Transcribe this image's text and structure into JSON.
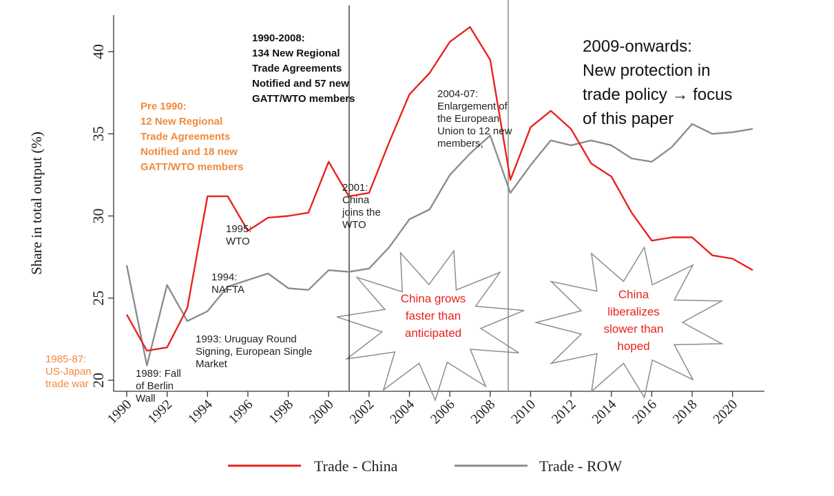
{
  "chart_data": {
    "type": "line",
    "ylabel": "Share in total output (%)",
    "xlabel": "",
    "ylim": [
      20,
      42.5
    ],
    "xlim": [
      1990,
      2021
    ],
    "yticks": [
      20,
      25,
      30,
      35,
      40
    ],
    "xticks": [
      1990,
      1992,
      1994,
      1996,
      1998,
      2000,
      2002,
      2004,
      2006,
      2008,
      2010,
      2012,
      2014,
      2016,
      2018,
      2020
    ],
    "x": [
      1990,
      1991,
      1992,
      1993,
      1994,
      1995,
      1996,
      1997,
      1998,
      1999,
      2000,
      2001,
      2002,
      2003,
      2004,
      2005,
      2006,
      2007,
      2008,
      2009,
      2010,
      2011,
      2012,
      2013,
      2014,
      2015,
      2016,
      2017,
      2018,
      2019,
      2020,
      2021
    ],
    "series": [
      {
        "name": "Trade - China",
        "color": "#e8221c",
        "values": [
          24.0,
          21.8,
          22.0,
          24.4,
          31.2,
          31.2,
          29.1,
          29.9,
          30.0,
          30.2,
          33.3,
          31.2,
          31.4,
          34.5,
          37.4,
          38.7,
          40.6,
          41.5,
          39.5,
          32.2,
          35.4,
          36.4,
          35.3,
          33.2,
          32.4,
          30.2,
          28.5,
          28.7,
          28.7,
          27.6,
          27.4,
          26.7
        ]
      },
      {
        "name": "Trade - ROW",
        "color": "#8c8c8c",
        "values": [
          27.0,
          20.9,
          25.8,
          23.6,
          24.2,
          25.7,
          26.1,
          26.5,
          25.6,
          25.5,
          26.7,
          26.6,
          26.8,
          28.1,
          29.8,
          30.4,
          32.5,
          33.8,
          34.9,
          31.4,
          33.1,
          34.6,
          34.3,
          34.6,
          34.3,
          33.5,
          33.3,
          34.2,
          35.6,
          35.0,
          35.1,
          35.3
        ]
      }
    ],
    "vlines": [
      2001,
      2008.85
    ],
    "legend_placement": "bottom-center",
    "grid": false
  },
  "annotations": {
    "pre1990": "Pre 1990:\n12 New Regional\nTrade Agreements\nNotified and 18 new\nGATT/WTO members",
    "period1990": "1990-2008:\n134 New Regional\nTrade Agreements\nNotified and 57 new\nGATT/WTO members",
    "period2009": "2009-onwards:\nNew protection in\ntrade policy → focus\nof this paper",
    "wto1995": "1995:\nWTO",
    "china2001": "2001:\nChina\njoins the\nWTO",
    "eu2004": "2004-07:\nEnlargement of\nthe European\nUnion to 12 new\nmembers,",
    "nafta1994": "1994:\nNAFTA",
    "uruguay1993": "1993: Uruguay Round\nSigning, European Single\nMarket",
    "berlin1989": "1989: Fall\nof Berlin\nWall",
    "usjapan": "1985-87:\nUS-Japan\ntrade war",
    "burst1": "China grows\nfaster than\nanticipated",
    "burst2": "China\nliberalizes\nslower than\nhoped"
  },
  "legend": {
    "china": "Trade - China",
    "row": "Trade - ROW"
  }
}
